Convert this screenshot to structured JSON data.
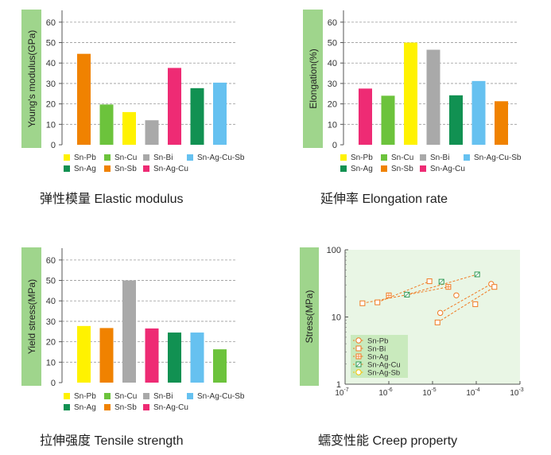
{
  "colors": {
    "Sn-Pb": "#fff200",
    "Sn-Cu": "#6cc33c",
    "Sn-Bi": "#a9a9a9",
    "Sn-Ag-Cu-Sb": "#66c1f0",
    "Sn-Ag": "#119152",
    "Sn-Sb": "#f08200",
    "Sn-Ag-Cu": "#ee2b74",
    "label_box": "#9fd58c",
    "creep_bg": "#e9f6e5",
    "creep_line": "#f07a22"
  },
  "chart_data": [
    {
      "id": "elastic",
      "type": "bar",
      "caption": "弹性模量 Elastic modulus",
      "ylabel": "Young's modulus(GPa)",
      "ylim": [
        0,
        65
      ],
      "yticks": [
        0,
        10,
        20,
        30,
        40,
        50,
        60
      ],
      "grid": "horizontal dashed",
      "categories": [
        "Sn-Sb",
        "Sn-Cu",
        "Sn-Pb",
        "Sn-Bi",
        "Sn-Ag-Cu",
        "Sn-Ag",
        "Sn-Ag-Cu-Sb"
      ],
      "values": [
        44.5,
        19.7,
        16,
        12,
        37.6,
        27.7,
        30.4
      ],
      "legend_rows": [
        [
          "Sn-Pb",
          "Sn-Cu",
          "Sn-Bi",
          "Sn-Ag-Cu-Sb"
        ],
        [
          "Sn-Ag",
          "Sn-Sb",
          "Sn-Ag-Cu"
        ]
      ]
    },
    {
      "id": "elongation",
      "type": "bar",
      "caption": "延伸率 Elongation rate",
      "ylabel": "Elongation(%)",
      "ylim": [
        0,
        65
      ],
      "yticks": [
        0,
        10,
        20,
        30,
        40,
        50,
        60
      ],
      "grid": "horizontal dashed",
      "categories": [
        "Sn-Ag-Cu",
        "Sn-Cu",
        "Sn-Pb",
        "Sn-Bi",
        "Sn-Ag",
        "Sn-Ag-Cu-Sb",
        "Sn-Sb"
      ],
      "values": [
        27.5,
        24,
        50,
        46.5,
        24.2,
        31.2,
        21.3
      ],
      "legend_rows": [
        [
          "Sn-Pb",
          "Sn-Cu",
          "Sn-Bi",
          "Sn-Ag-Cu-Sb"
        ],
        [
          "Sn-Ag",
          "Sn-Sb",
          "Sn-Ag-Cu"
        ]
      ]
    },
    {
      "id": "tensile",
      "type": "bar",
      "caption": "拉伸强度 Tensile strength",
      "ylabel": "Yield stress(MPa)",
      "ylim": [
        0,
        65
      ],
      "yticks": [
        0,
        10,
        20,
        30,
        40,
        50,
        60
      ],
      "grid": "horizontal dashed",
      "categories": [
        "Sn-Pb",
        "Sn-Sb",
        "Sn-Bi",
        "Sn-Ag-Cu",
        "Sn-Ag",
        "Sn-Ag-Cu-Sb",
        "Sn-Cu"
      ],
      "values": [
        27.7,
        26.7,
        50,
        26.5,
        24.5,
        24.5,
        16.3
      ],
      "legend_rows": [
        [
          "Sn-Pb",
          "Sn-Cu",
          "Sn-Bi",
          "Sn-Ag-Cu-Sb"
        ],
        [
          "Sn-Ag",
          "Sn-Sb",
          "Sn-Ag-Cu"
        ]
      ]
    },
    {
      "id": "creep",
      "type": "scatter",
      "caption": "蠕变性能 Creep property",
      "ylabel": "Stress(MPa)",
      "xscale": "log",
      "yscale": "log",
      "xlim": [
        1e-07,
        0.001
      ],
      "ylim": [
        1,
        100
      ],
      "xtick_exponents": [
        -7,
        -6,
        -5,
        -4,
        -3
      ],
      "ytick_labels": [
        "100",
        "10",
        "1"
      ],
      "legend_placement": "bottom-left",
      "series": [
        {
          "name": "Sn-Pb",
          "marker": "circle",
          "x": [
            1.5e-05,
            3.5e-05,
            0.00022
          ],
          "y": [
            11.5,
            21,
            31
          ]
        },
        {
          "name": "Sn-Bi",
          "marker": "square",
          "x": [
            2.5e-07,
            5.5e-07,
            8.5e-06,
            1.3e-05,
            9.5e-05,
            0.00026
          ],
          "y": [
            16,
            16.5,
            34,
            8.3,
            15.5,
            28
          ]
        },
        {
          "name": "Sn-Ag",
          "marker": "square-plus",
          "x": [
            1e-06,
            2.3e-05
          ],
          "y": [
            21,
            28
          ]
        },
        {
          "name": "Sn-Ag-Cu",
          "marker": "square-slash",
          "x": [
            2.6e-06,
            1.6e-05,
            0.000105
          ],
          "y": [
            21.5,
            33.5,
            43
          ]
        },
        {
          "name": "Sn-Ag-Sb",
          "marker": "circle-yellow",
          "x": [],
          "y": []
        }
      ],
      "trend_lines": [
        {
          "x": [
            2.5e-07,
            2.3e-05
          ],
          "y": [
            16,
            28
          ]
        },
        {
          "x": [
            5.5e-07,
            8.5e-06
          ],
          "y": [
            16.5,
            34
          ]
        },
        {
          "x": [
            1.3e-05,
            0.00026
          ],
          "y": [
            8.3,
            28
          ]
        },
        {
          "x": [
            1.5e-05,
            0.00022
          ],
          "y": [
            11.5,
            31
          ]
        },
        {
          "x": [
            2.6e-06,
            0.000105
          ],
          "y": [
            21.5,
            43
          ]
        }
      ]
    }
  ]
}
